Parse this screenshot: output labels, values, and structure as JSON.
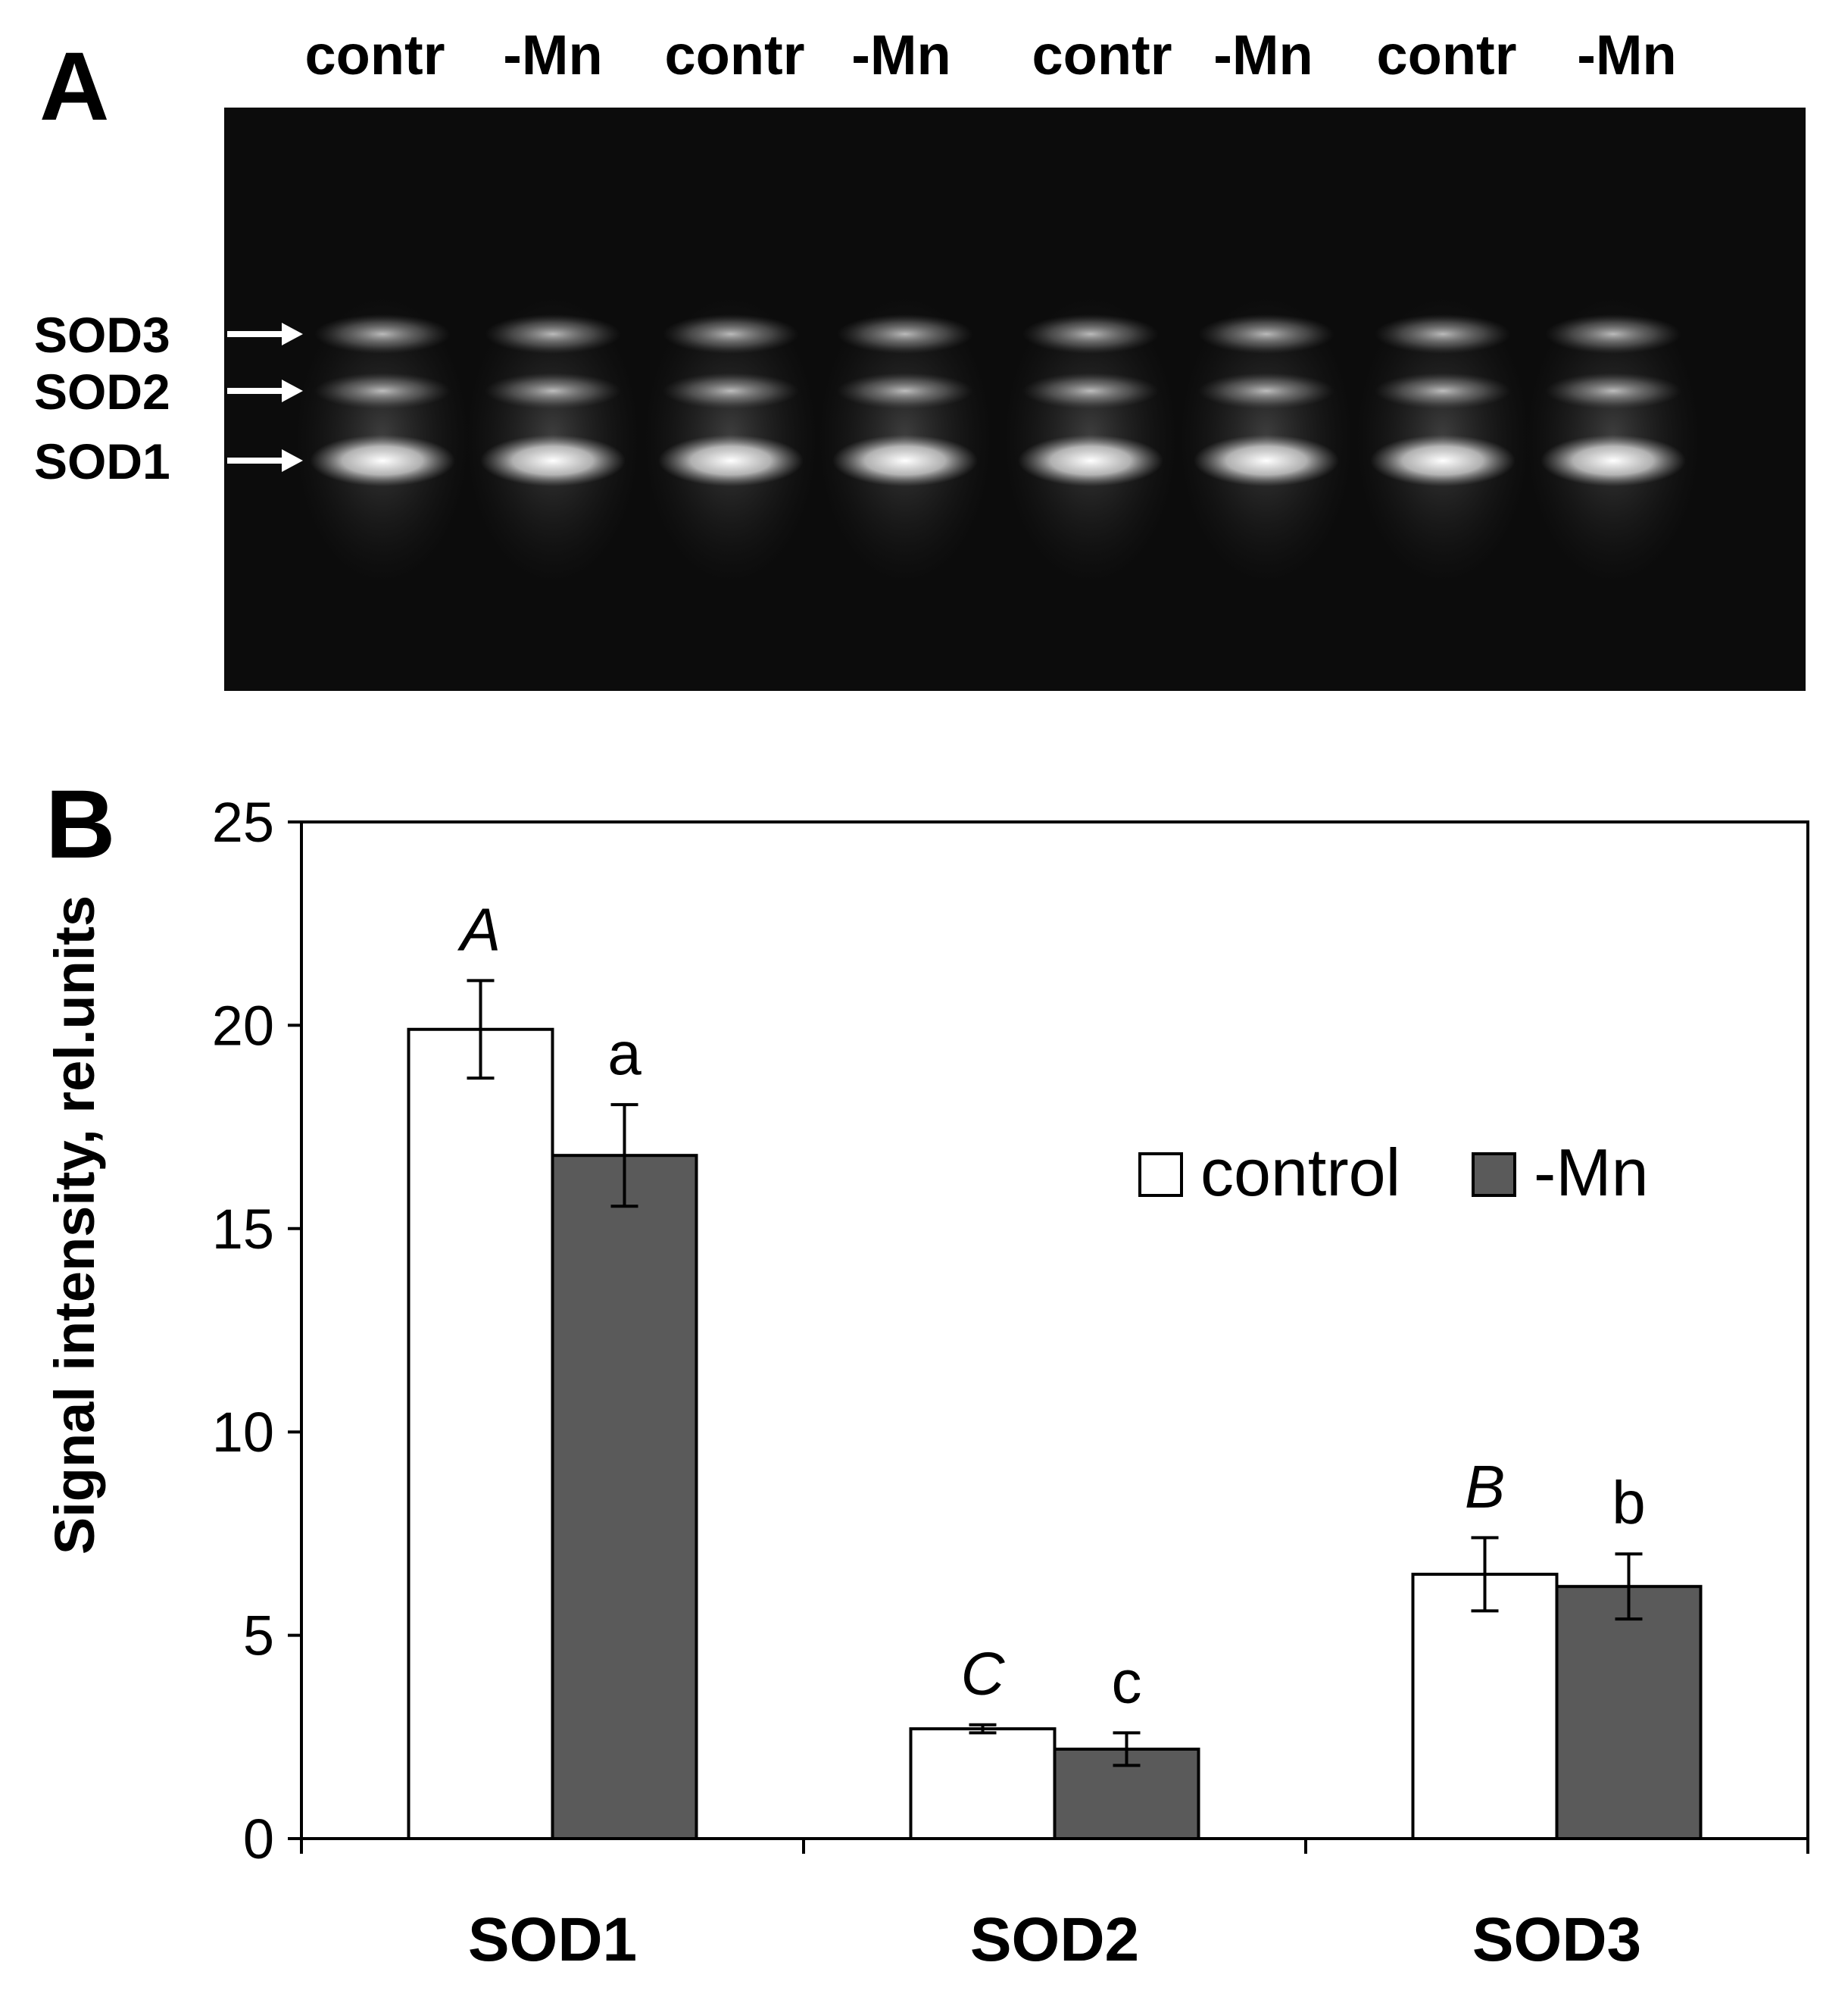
{
  "panel_a": {
    "panel_letter": "A",
    "lane_labels": [
      "contr",
      "-Mn",
      "contr",
      "-Mn",
      "contr",
      "-Mn",
      "contr",
      "-Mn"
    ],
    "band_labels": [
      "SOD3",
      "SOD2",
      "SOD1"
    ]
  },
  "panel_b": {
    "panel_letter": "B"
  },
  "chart_data": {
    "type": "bar",
    "categories": [
      "SOD1",
      "SOD2",
      "SOD3"
    ],
    "series": [
      {
        "name": "control",
        "values": [
          19.9,
          2.7,
          6.5
        ],
        "errors": [
          1.2,
          0.1,
          0.9
        ],
        "significance": [
          "A",
          "C",
          "B"
        ],
        "color": "#ffffff"
      },
      {
        "name": "-Mn",
        "values": [
          16.8,
          2.2,
          6.2
        ],
        "errors": [
          1.25,
          0.4,
          0.8
        ],
        "significance": [
          "a",
          "c",
          "b"
        ],
        "color": "#5a5a5a"
      }
    ],
    "title": "",
    "xlabel": "",
    "ylabel": "Signal intensity, rel.units",
    "ylim": [
      0,
      25
    ],
    "yticks": [
      0,
      5,
      10,
      15,
      20,
      25
    ],
    "grid": false,
    "legend_position": "upper-right"
  }
}
